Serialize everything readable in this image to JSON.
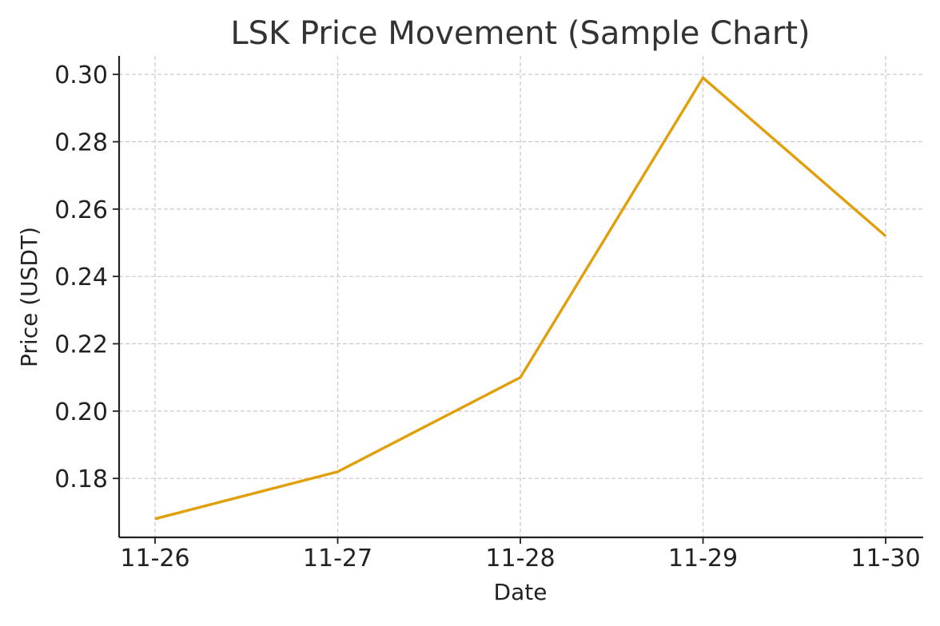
{
  "chart_data": {
    "type": "line",
    "title": "LSK Price Movement (Sample Chart)",
    "xlabel": "Date",
    "ylabel": "Price (USDT)",
    "categories": [
      "11-26",
      "11-27",
      "11-28",
      "11-29",
      "11-30"
    ],
    "series": [
      {
        "values": [
          0.168,
          0.182,
          0.21,
          0.299,
          0.252
        ],
        "color": "#e1a00a"
      }
    ],
    "ylim": [
      0.1625,
      0.3055
    ],
    "yticks": [
      0.18,
      0.2,
      0.22,
      0.24,
      0.26,
      0.28,
      0.3
    ],
    "ytick_labels": [
      "0.18",
      "0.20",
      "0.22",
      "0.24",
      "0.26",
      "0.28",
      "0.30"
    ],
    "grid": true,
    "legend": "none",
    "colors": {
      "axis": "#222222",
      "grid": "#c8c8c8",
      "text": "#333333"
    }
  }
}
